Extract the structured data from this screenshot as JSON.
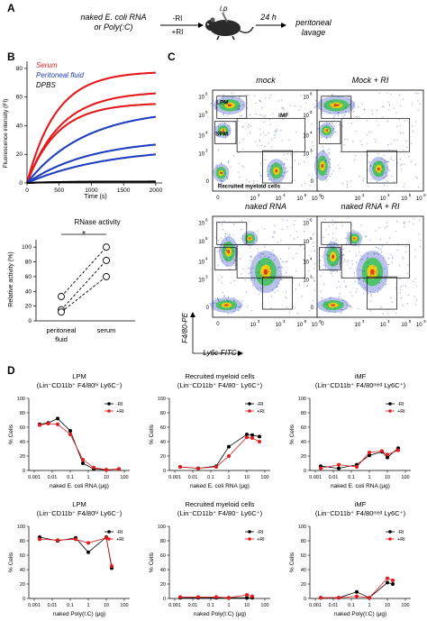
{
  "panel_a": {
    "letter": "A",
    "left_line1": "naked  E. coli RNA",
    "left_line2": "or Poly(:C)",
    "cond1": "-RI",
    "cond2": "+RI",
    "route": "i.p",
    "time": "24 h",
    "out_line1": "peritoneal",
    "out_line2": "lavage"
  },
  "panel_b": {
    "letter": "B",
    "legend": [
      {
        "label": "Serum",
        "color": "#e41a1c"
      },
      {
        "label": "Peritoneal fluid",
        "color": "#1f3fbf"
      },
      {
        "label": "DPBS",
        "color": "#000000"
      }
    ],
    "kinetics": {
      "ylabel": "Fluorescence intensity (FI)",
      "xlabel": "Time (s)",
      "xticks": [
        "0",
        "500",
        "1000",
        "1500",
        "2000"
      ],
      "yticks": [
        "0",
        "20",
        "40",
        "60",
        "80"
      ]
    },
    "activity": {
      "title": "RNase activity",
      "ylabel": "Relative activity (%)",
      "star": "*",
      "yticks": [
        "0",
        "20",
        "40",
        "60",
        "80",
        "100"
      ],
      "cat1_line1": "peritoneal",
      "cat1_line2": "fluid",
      "cat2": "serum"
    }
  },
  "panel_c": {
    "letter": "C",
    "plots": [
      {
        "title": "mock"
      },
      {
        "title": "Mock + RI"
      },
      {
        "title": "naked RNA"
      },
      {
        "title": "naked RNA + RI"
      }
    ],
    "gate_lpm": "LPM",
    "gate_spm": "SPM",
    "gate_imf": "iMF",
    "gate_rec": "Recruited myeloid cells",
    "axis_y": "F4/80-PE",
    "axis_x": "Ly6c-FITC",
    "tick_labels": {
      "e3": "10",
      "e4": "10",
      "e5": "10",
      "e6": "10",
      "zero": "0",
      "s3": "3",
      "s4": "4",
      "s5": "5",
      "s6": "6"
    }
  },
  "panel_d": {
    "letter": "D",
    "ylabel": "% Cells",
    "legend_minus": "-RI",
    "legend_plus": "+RI",
    "minus_color": "#000000",
    "plus_color": "#e41a1c",
    "xlabel_rna": "naked E. coli RNA (µg)",
    "xlabel_polyic": "naked Poly(I:C) (µg)",
    "xticks": [
      "0.001",
      "0.01",
      "0.1",
      "1",
      "10",
      "100"
    ],
    "yticks": [
      "0",
      "20",
      "40",
      "60",
      "80",
      "100"
    ]
  },
  "chart_data": [
    {
      "type": "line",
      "id": "kinetics",
      "xlabel": "Time (s)",
      "ylabel": "Fluorescence intensity (FI)",
      "xlim": [
        0,
        2100
      ],
      "ylim": [
        0,
        85
      ],
      "series": [
        {
          "name": "Serum",
          "color": "#e41a1c",
          "plateau": 78,
          "rate": 0.0022
        },
        {
          "name": "Serum",
          "color": "#e41a1c",
          "plateau": 64,
          "rate": 0.0019
        },
        {
          "name": "Serum",
          "color": "#e41a1c",
          "plateau": 56,
          "rate": 0.0021
        },
        {
          "name": "Peritoneal fluid",
          "color": "#1f3fbf",
          "plateau": 52,
          "rate": 0.0011
        },
        {
          "name": "Peritoneal fluid",
          "color": "#1f3fbf",
          "plateau": 31,
          "rate": 0.001
        },
        {
          "name": "Peritoneal fluid",
          "color": "#1f3fbf",
          "plateau": 25,
          "rate": 0.0008
        },
        {
          "name": "DPBS",
          "color": "#000000",
          "plateau": 1,
          "rate": 0.002
        }
      ]
    },
    {
      "type": "scatter",
      "id": "rnase",
      "title": "RNase activity",
      "ylabel": "Relative activity (%)",
      "ylim": [
        0,
        110
      ],
      "pairs": [
        [
          33,
          100
        ],
        [
          15,
          82
        ],
        [
          12,
          60
        ]
      ]
    },
    {
      "type": "line",
      "id": "d-rna-lpm",
      "title_line1": "LPM",
      "title_line2": "(Lin⁻CD11b⁺ F4/80ʰⁱ Ly6C⁻)",
      "xlabel": "naked E. coli RNA (µg)",
      "x": [
        0.002,
        0.006,
        0.02,
        0.1,
        0.5,
        2,
        10,
        50
      ],
      "series": [
        {
          "name": "-RI",
          "color": "#000000",
          "values": [
            64,
            66,
            72,
            55,
            10,
            2,
            1,
            2
          ]
        },
        {
          "name": "+RI",
          "color": "#e41a1c",
          "values": [
            63,
            65,
            64,
            50,
            15,
            4,
            1,
            2
          ]
        }
      ]
    },
    {
      "type": "line",
      "id": "d-rna-rec",
      "title_line1": "Recruited myeloid cells",
      "title_line2": "(Lin⁻CD11b⁺ F4/80⁻ Ly6C⁺)",
      "xlabel": "naked E. coli RNA (µg)",
      "x": [
        0.002,
        0.02,
        0.2,
        1,
        10,
        20,
        50
      ],
      "series": [
        {
          "name": "-RI",
          "color": "#000000",
          "values": [
            5,
            3,
            6,
            33,
            50,
            49,
            47
          ]
        },
        {
          "name": "+RI",
          "color": "#e41a1c",
          "values": [
            5,
            3,
            5,
            20,
            46,
            45,
            40
          ]
        }
      ]
    },
    {
      "type": "line",
      "id": "d-rna-imf",
      "title_line1": "iMF",
      "title_line2": "(Lin⁻CD11b⁺ F4/80ᵐᵉᵈ Ly6C⁺)",
      "xlabel": "naked E. coli RNA (µg)",
      "x": [
        0.002,
        0.02,
        0.2,
        1,
        5,
        10,
        40
      ],
      "series": [
        {
          "name": "-RI",
          "color": "#000000",
          "values": [
            6,
            3,
            8,
            21,
            26,
            18,
            31
          ]
        },
        {
          "name": "+RI",
          "color": "#e41a1c",
          "values": [
            3,
            8,
            5,
            25,
            27,
            22,
            28
          ]
        }
      ]
    },
    {
      "type": "line",
      "id": "d-pic-lpm",
      "title_line1": "LPM",
      "title_line2": "(Lin⁻CD11b⁺ F4/80ʰⁱ Ly6C⁻)",
      "xlabel": "naked Poly(I:C) (µg)",
      "x": [
        0.002,
        0.02,
        0.2,
        1,
        10,
        20
      ],
      "series": [
        {
          "name": "-RI",
          "color": "#000000",
          "values": [
            85,
            80,
            84,
            64,
            85,
            42
          ]
        },
        {
          "name": "+RI",
          "color": "#e41a1c",
          "values": [
            82,
            81,
            82,
            77,
            84,
            45
          ]
        }
      ]
    },
    {
      "type": "line",
      "id": "d-pic-rec",
      "title_line1": "Recruited myeloid cells",
      "title_line2": "(Lin⁻CD11b⁺ F4/80⁻ Ly6C⁺)",
      "xlabel": "naked Poly(I:C) (µg)",
      "x": [
        0.002,
        0.02,
        0.2,
        1,
        10,
        20
      ],
      "series": [
        {
          "name": "-RI",
          "color": "#000000",
          "values": [
            1,
            1,
            1,
            1,
            1,
            1
          ]
        },
        {
          "name": "+RI",
          "color": "#e41a1c",
          "values": [
            2,
            2,
            2,
            1,
            5,
            3
          ]
        }
      ]
    },
    {
      "type": "line",
      "id": "d-pic-imf",
      "title_line1": "iMF",
      "title_line2": "(Lin⁻CD11b⁺ F4/80ᵐᵉᵈ Ly6C⁺)",
      "xlabel": "naked Poly(I:C) (µg)",
      "x": [
        0.002,
        0.02,
        0.2,
        1,
        10,
        20
      ],
      "series": [
        {
          "name": "-RI",
          "color": "#000000",
          "values": [
            1,
            1,
            9,
            1,
            22,
            20
          ]
        },
        {
          "name": "+RI",
          "color": "#e41a1c",
          "values": [
            1,
            1,
            3,
            1,
            28,
            25
          ]
        }
      ]
    }
  ]
}
